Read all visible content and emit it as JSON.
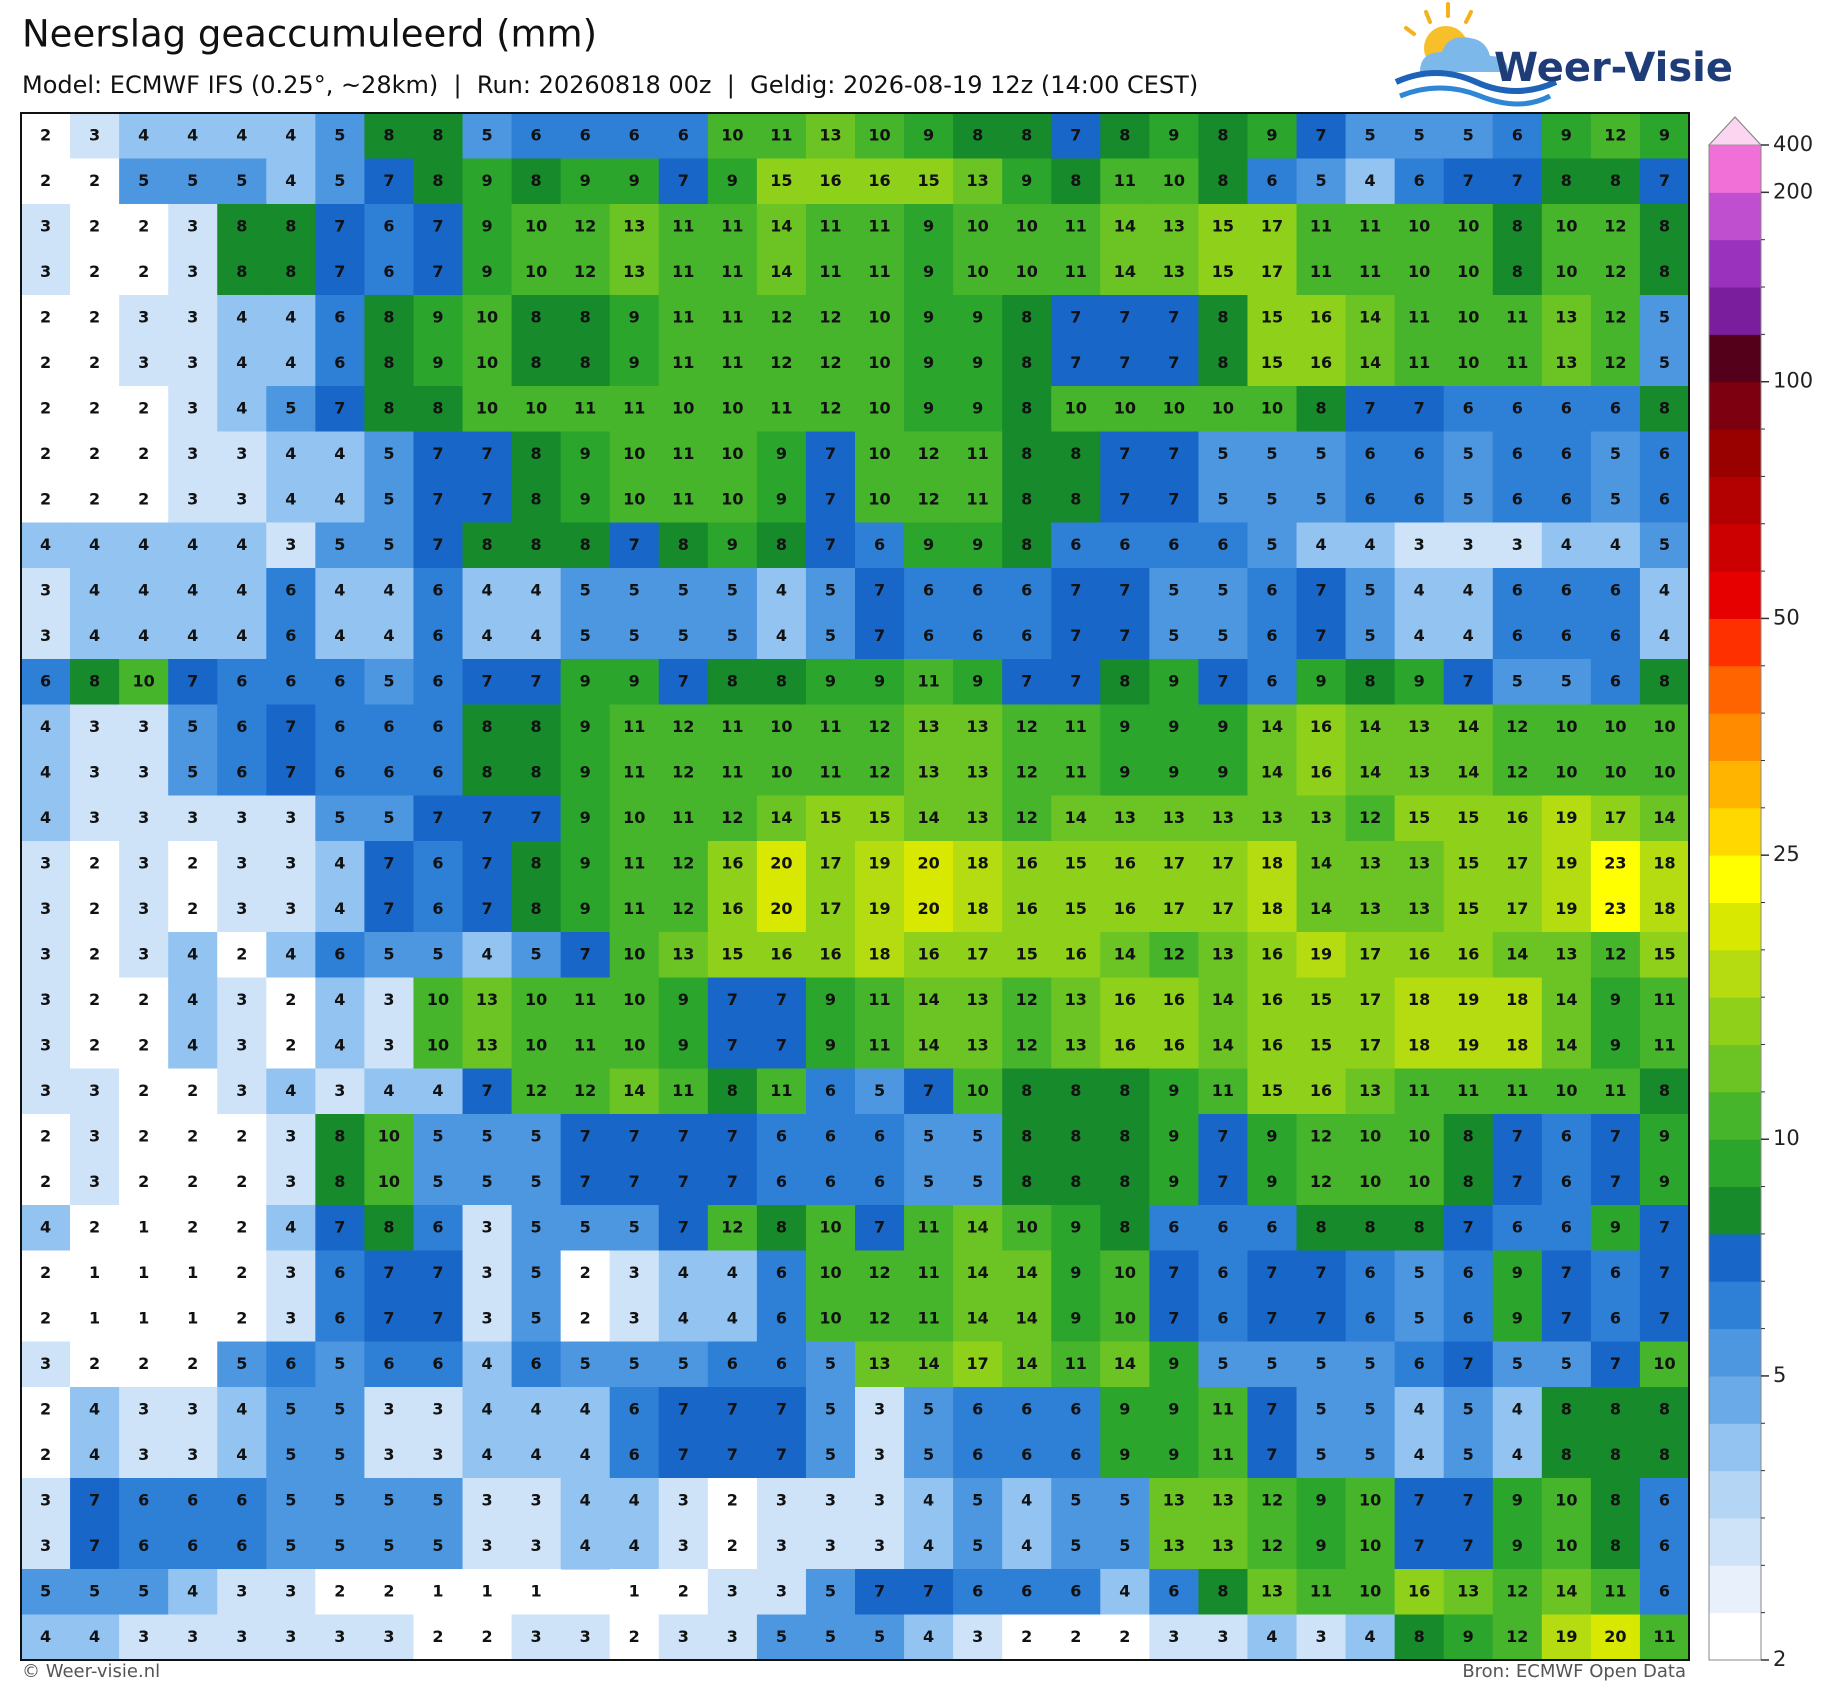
{
  "header": {
    "title": "Neerslag geaccumuleerd (mm)",
    "subtitle": "Model: ECMWF IFS (0.25°, ~28km)  |  Run: 20260818 00z  |  Geldig: 2026-08-19 12z (14:00 CEST)"
  },
  "logo": {
    "text": "Weer-Visie"
  },
  "map": {
    "values": [
      [
        2,
        3,
        4,
        4,
        4,
        4,
        5,
        8,
        8,
        5,
        6,
        6,
        6,
        6,
        10,
        11,
        13,
        10,
        9,
        8,
        8,
        7,
        8,
        9,
        8,
        9,
        7,
        5,
        5,
        5,
        6,
        9,
        12,
        9
      ],
      [
        2,
        2,
        5,
        5,
        5,
        4,
        5,
        7,
        8,
        9,
        8,
        9,
        9,
        7,
        9,
        15,
        16,
        16,
        15,
        13,
        9,
        8,
        11,
        10,
        8,
        6,
        5,
        4,
        6,
        7,
        7,
        8,
        8,
        7
      ],
      [
        3,
        2,
        2,
        3,
        8,
        8,
        7,
        6,
        7,
        9,
        10,
        12,
        13,
        11,
        11,
        14,
        11,
        11,
        9,
        10,
        10,
        11,
        14,
        13,
        15,
        17,
        11,
        11,
        10,
        10,
        8,
        10,
        12,
        8
      ],
      [
        3,
        2,
        2,
        3,
        8,
        8,
        7,
        6,
        7,
        9,
        10,
        12,
        13,
        11,
        11,
        14,
        11,
        11,
        9,
        10,
        10,
        11,
        14,
        13,
        15,
        17,
        11,
        11,
        10,
        10,
        8,
        10,
        12,
        8
      ],
      [
        2,
        2,
        3,
        3,
        4,
        4,
        6,
        8,
        9,
        10,
        8,
        8,
        9,
        11,
        11,
        12,
        12,
        10,
        9,
        9,
        8,
        7,
        7,
        7,
        8,
        15,
        16,
        14,
        11,
        10,
        11,
        13,
        12,
        5
      ],
      [
        2,
        2,
        3,
        3,
        4,
        4,
        6,
        8,
        9,
        10,
        8,
        8,
        9,
        11,
        11,
        12,
        12,
        10,
        9,
        9,
        8,
        7,
        7,
        7,
        8,
        15,
        16,
        14,
        11,
        10,
        11,
        13,
        12,
        5
      ],
      [
        2,
        2,
        2,
        3,
        4,
        5,
        7,
        8,
        8,
        10,
        10,
        11,
        11,
        10,
        10,
        11,
        12,
        10,
        9,
        9,
        8,
        10,
        10,
        10,
        10,
        10,
        8,
        7,
        7,
        6,
        6,
        6,
        6,
        8
      ],
      [
        2,
        2,
        2,
        3,
        3,
        4,
        4,
        5,
        7,
        7,
        8,
        9,
        10,
        11,
        10,
        9,
        7,
        10,
        12,
        11,
        8,
        8,
        7,
        7,
        5,
        5,
        5,
        6,
        6,
        5,
        6,
        6,
        5,
        6
      ],
      [
        2,
        2,
        2,
        3,
        3,
        4,
        4,
        5,
        7,
        7,
        8,
        9,
        10,
        11,
        10,
        9,
        7,
        10,
        12,
        11,
        8,
        8,
        7,
        7,
        5,
        5,
        5,
        6,
        6,
        5,
        6,
        6,
        5,
        6
      ],
      [
        4,
        4,
        4,
        4,
        4,
        3,
        5,
        5,
        7,
        8,
        8,
        8,
        7,
        8,
        9,
        8,
        7,
        6,
        9,
        9,
        8,
        6,
        6,
        6,
        6,
        5,
        4,
        4,
        3,
        3,
        3,
        4,
        4,
        5
      ],
      [
        3,
        4,
        4,
        4,
        4,
        6,
        4,
        4,
        6,
        4,
        4,
        5,
        5,
        5,
        5,
        4,
        5,
        7,
        6,
        6,
        6,
        7,
        7,
        5,
        5,
        6,
        7,
        5,
        4,
        4,
        6,
        6,
        6,
        4
      ],
      [
        3,
        4,
        4,
        4,
        4,
        6,
        4,
        4,
        6,
        4,
        4,
        5,
        5,
        5,
        5,
        4,
        5,
        7,
        6,
        6,
        6,
        7,
        7,
        5,
        5,
        6,
        7,
        5,
        4,
        4,
        6,
        6,
        6,
        4
      ],
      [
        6,
        8,
        10,
        7,
        6,
        6,
        6,
        5,
        6,
        7,
        7,
        9,
        9,
        7,
        8,
        8,
        9,
        9,
        11,
        9,
        7,
        7,
        8,
        9,
        7,
        6,
        9,
        8,
        9,
        7,
        5,
        5,
        6,
        8
      ],
      [
        4,
        3,
        3,
        5,
        6,
        7,
        6,
        6,
        6,
        8,
        8,
        9,
        11,
        12,
        11,
        10,
        11,
        12,
        13,
        13,
        12,
        11,
        9,
        9,
        9,
        14,
        16,
        14,
        13,
        14,
        12,
        10,
        10,
        10
      ],
      [
        4,
        3,
        3,
        5,
        6,
        7,
        6,
        6,
        6,
        8,
        8,
        9,
        11,
        12,
        11,
        10,
        11,
        12,
        13,
        13,
        12,
        11,
        9,
        9,
        9,
        14,
        16,
        14,
        13,
        14,
        12,
        10,
        10,
        10
      ],
      [
        4,
        3,
        3,
        3,
        3,
        3,
        5,
        5,
        7,
        7,
        7,
        9,
        10,
        11,
        12,
        14,
        15,
        15,
        14,
        13,
        12,
        14,
        13,
        13,
        13,
        13,
        13,
        12,
        15,
        15,
        16,
        19,
        17,
        14
      ],
      [
        3,
        2,
        3,
        2,
        3,
        3,
        4,
        7,
        6,
        7,
        8,
        9,
        11,
        12,
        16,
        20,
        17,
        19,
        20,
        18,
        16,
        15,
        16,
        17,
        17,
        18,
        14,
        13,
        13,
        15,
        17,
        19,
        23,
        18
      ],
      [
        3,
        2,
        3,
        2,
        3,
        3,
        4,
        7,
        6,
        7,
        8,
        9,
        11,
        12,
        16,
        20,
        17,
        19,
        20,
        18,
        16,
        15,
        16,
        17,
        17,
        18,
        14,
        13,
        13,
        15,
        17,
        19,
        23,
        18
      ],
      [
        3,
        2,
        3,
        4,
        2,
        4,
        6,
        5,
        5,
        4,
        5,
        7,
        10,
        13,
        15,
        16,
        16,
        18,
        16,
        17,
        15,
        16,
        14,
        12,
        13,
        16,
        19,
        17,
        16,
        16,
        14,
        13,
        12,
        15
      ],
      [
        3,
        2,
        2,
        4,
        3,
        2,
        4,
        3,
        10,
        13,
        10,
        11,
        10,
        9,
        7,
        7,
        9,
        11,
        14,
        13,
        12,
        13,
        16,
        16,
        14,
        16,
        15,
        17,
        18,
        19,
        18,
        14,
        9,
        11
      ],
      [
        3,
        2,
        2,
        4,
        3,
        2,
        4,
        3,
        10,
        13,
        10,
        11,
        10,
        9,
        7,
        7,
        9,
        11,
        14,
        13,
        12,
        13,
        16,
        16,
        14,
        16,
        15,
        17,
        18,
        19,
        18,
        14,
        9,
        11
      ],
      [
        3,
        3,
        2,
        2,
        3,
        4,
        3,
        4,
        4,
        7,
        12,
        12,
        14,
        11,
        8,
        11,
        6,
        5,
        7,
        10,
        8,
        8,
        8,
        9,
        11,
        15,
        16,
        13,
        11,
        11,
        11,
        10,
        11,
        8
      ],
      [
        2,
        3,
        2,
        2,
        2,
        3,
        8,
        10,
        5,
        5,
        5,
        7,
        7,
        7,
        7,
        6,
        6,
        6,
        5,
        5,
        8,
        8,
        8,
        9,
        7,
        9,
        12,
        10,
        10,
        8,
        7,
        6,
        7,
        9
      ],
      [
        2,
        3,
        2,
        2,
        2,
        3,
        8,
        10,
        5,
        5,
        5,
        7,
        7,
        7,
        7,
        6,
        6,
        6,
        5,
        5,
        8,
        8,
        8,
        9,
        7,
        9,
        12,
        10,
        10,
        8,
        7,
        6,
        7,
        9
      ],
      [
        4,
        2,
        1,
        2,
        2,
        4,
        7,
        8,
        6,
        3,
        5,
        5,
        5,
        7,
        12,
        8,
        10,
        7,
        11,
        14,
        10,
        9,
        8,
        6,
        6,
        6,
        8,
        8,
        8,
        7,
        6,
        6,
        9,
        7
      ],
      [
        2,
        1,
        1,
        1,
        2,
        3,
        6,
        7,
        7,
        3,
        5,
        2,
        3,
        4,
        4,
        6,
        10,
        12,
        11,
        14,
        14,
        9,
        10,
        7,
        6,
        7,
        7,
        6,
        5,
        6,
        9,
        7,
        6,
        7
      ],
      [
        2,
        1,
        1,
        1,
        2,
        3,
        6,
        7,
        7,
        3,
        5,
        2,
        3,
        4,
        4,
        6,
        10,
        12,
        11,
        14,
        14,
        9,
        10,
        7,
        6,
        7,
        7,
        6,
        5,
        6,
        9,
        7,
        6,
        7
      ],
      [
        3,
        2,
        2,
        2,
        5,
        6,
        5,
        6,
        6,
        4,
        6,
        5,
        5,
        5,
        6,
        6,
        5,
        13,
        14,
        17,
        14,
        11,
        14,
        9,
        5,
        5,
        5,
        5,
        6,
        7,
        5,
        5,
        7,
        10
      ],
      [
        2,
        4,
        3,
        3,
        4,
        5,
        5,
        3,
        3,
        4,
        4,
        4,
        6,
        7,
        7,
        7,
        5,
        3,
        5,
        6,
        6,
        6,
        9,
        9,
        11,
        7,
        5,
        5,
        4,
        5,
        4,
        8,
        8,
        8
      ],
      [
        2,
        4,
        3,
        3,
        4,
        5,
        5,
        3,
        3,
        4,
        4,
        4,
        6,
        7,
        7,
        7,
        5,
        3,
        5,
        6,
        6,
        6,
        9,
        9,
        11,
        7,
        5,
        5,
        4,
        5,
        4,
        8,
        8,
        8
      ],
      [
        3,
        7,
        6,
        6,
        6,
        5,
        5,
        5,
        5,
        3,
        3,
        4,
        4,
        3,
        2,
        3,
        3,
        3,
        4,
        5,
        4,
        5,
        5,
        13,
        13,
        12,
        9,
        10,
        7,
        7,
        9,
        10,
        8,
        6
      ],
      [
        3,
        7,
        6,
        6,
        6,
        5,
        5,
        5,
        5,
        3,
        3,
        4,
        4,
        3,
        2,
        3,
        3,
        3,
        4,
        5,
        4,
        5,
        5,
        13,
        13,
        12,
        9,
        10,
        7,
        7,
        9,
        10,
        8,
        6
      ],
      [
        5,
        5,
        5,
        4,
        3,
        3,
        2,
        2,
        1,
        1,
        1,
        null,
        1,
        2,
        3,
        3,
        5,
        7,
        7,
        6,
        6,
        6,
        4,
        6,
        8,
        13,
        11,
        10,
        16,
        13,
        12,
        14,
        11,
        6
      ],
      [
        4,
        4,
        3,
        3,
        3,
        3,
        3,
        3,
        2,
        2,
        3,
        3,
        2,
        3,
        3,
        5,
        5,
        5,
        4,
        3,
        2,
        2,
        2,
        3,
        3,
        4,
        3,
        4,
        8,
        9,
        12,
        19,
        20,
        11
      ]
    ]
  },
  "colorbar": {
    "ticks": [
      2,
      5,
      10,
      25,
      50,
      100,
      200,
      400
    ],
    "colors": [
      "#ffffff",
      "#e8f1fb",
      "#cfe3f8",
      "#b5d5f5",
      "#93c3f0",
      "#6aaae8",
      "#4d96e0",
      "#2e7fd6",
      "#1966c9",
      "#178a2b",
      "#2ca52d",
      "#46b52b",
      "#6cc424",
      "#8fd11a",
      "#b5dc10",
      "#d8e800",
      "#ffff00",
      "#ffd800",
      "#ffb400",
      "#ff8c00",
      "#ff6400",
      "#ff3000",
      "#e60000",
      "#cc0000",
      "#b30000",
      "#990000",
      "#7d0010",
      "#55001a",
      "#7a1e9e",
      "#9a32bd",
      "#c04fd0",
      "#f070d8",
      "#fcd6f0"
    ]
  },
  "footer": {
    "left": "© Weer-visie.nl",
    "right": "Bron: ECMWF Open Data"
  }
}
